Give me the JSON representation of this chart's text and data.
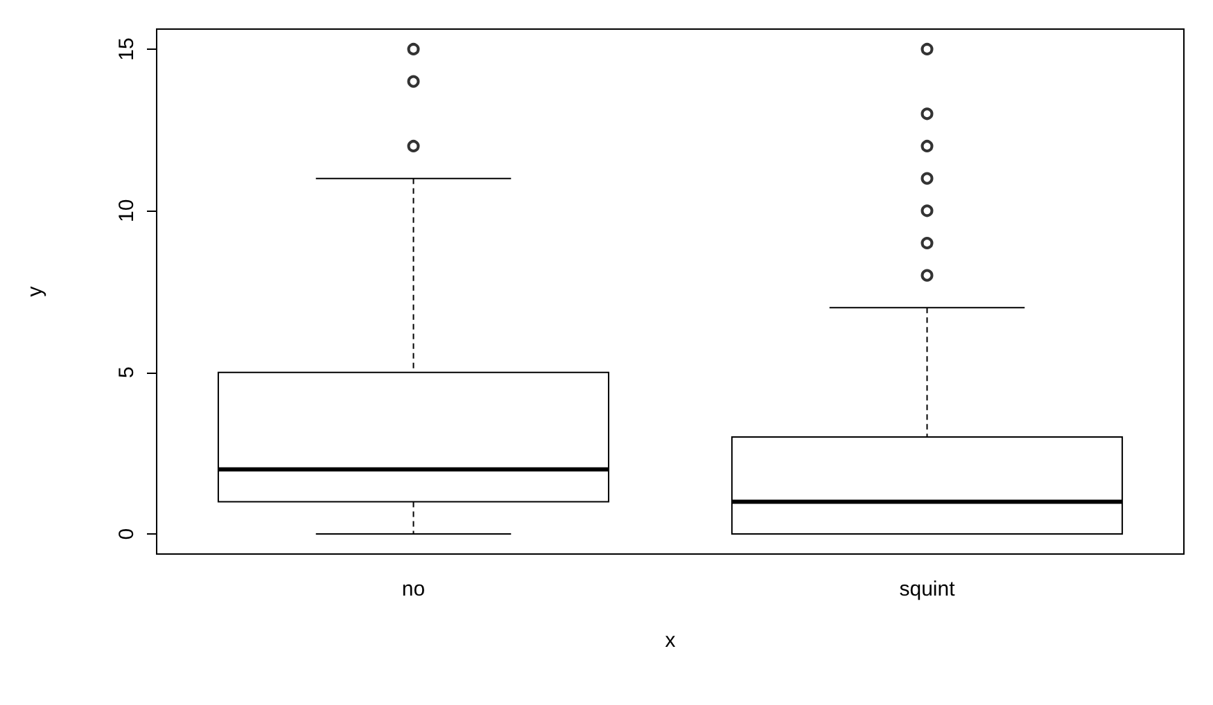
{
  "chart_data": {
    "type": "box",
    "xlabel": "x",
    "ylabel": "y",
    "categories": [
      "no",
      "squint"
    ],
    "boxes": [
      {
        "low": 0,
        "q1": 1,
        "median": 2,
        "q3": 5,
        "high": 11,
        "outliers": [
          12,
          14,
          15
        ]
      },
      {
        "low": 0,
        "q1": 0,
        "median": 1,
        "q3": 3,
        "high": 7,
        "outliers": [
          8,
          9,
          10,
          11,
          12,
          13,
          15
        ]
      }
    ],
    "color": "#000000",
    "ylim": [
      -0.62,
      15.62
    ],
    "yticks": [
      0,
      5,
      10,
      15
    ],
    "grid": false,
    "marker": "circle"
  }
}
